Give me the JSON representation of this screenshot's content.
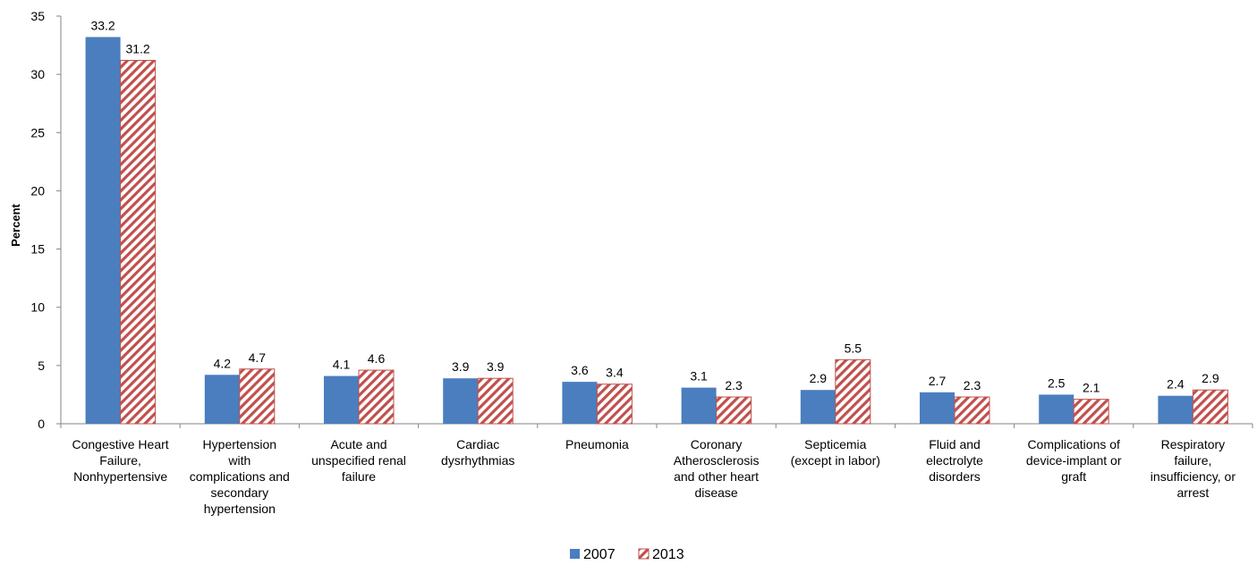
{
  "chart_data": {
    "type": "bar",
    "categories": [
      [
        "Congestive Heart",
        "Failure,",
        "Nonhypertensive"
      ],
      [
        "Hypertension",
        "with",
        "complications and",
        "secondary",
        "hypertension"
      ],
      [
        "Acute and",
        "unspecified renal",
        "failure"
      ],
      [
        "Cardiac",
        "dysrhythmias"
      ],
      [
        "Pneumonia"
      ],
      [
        "Coronary",
        "Atherosclerosis",
        "and other heart",
        "disease"
      ],
      [
        "Septicemia",
        "(except in labor)"
      ],
      [
        "Fluid and",
        "electrolyte",
        "disorders"
      ],
      [
        "Complications of",
        "device-implant or",
        "graft"
      ],
      [
        "Respiratory",
        "failure,",
        "insufficiency, or",
        "arrest"
      ]
    ],
    "series": [
      {
        "name": "2007",
        "values": [
          33.2,
          4.2,
          4.1,
          3.9,
          3.6,
          3.1,
          2.9,
          2.7,
          2.5,
          2.4
        ],
        "color": "#4a7ebf",
        "pattern": "solid"
      },
      {
        "name": "2013",
        "values": [
          31.2,
          4.7,
          4.6,
          3.9,
          3.4,
          2.3,
          5.5,
          2.3,
          2.1,
          2.9
        ],
        "color": "#c0504d",
        "pattern": "diagonal-hatch"
      }
    ],
    "value_labels": [
      [
        "33.2",
        "4.2",
        "4.1",
        "3.9",
        "3.6",
        "3.1",
        "2.9",
        "2.7",
        "2.5",
        "2.4"
      ],
      [
        "31.2",
        "4.7",
        "4.6",
        "3.9",
        "3.4",
        "2.3",
        "5.5",
        "2.3",
        "2.1",
        "2.9"
      ]
    ],
    "ylabel": "Percent",
    "ylim": [
      0,
      35
    ],
    "yticks": [
      0,
      5,
      10,
      15,
      20,
      25,
      30,
      35
    ],
    "grid": false,
    "legend_position": "bottom-center"
  }
}
